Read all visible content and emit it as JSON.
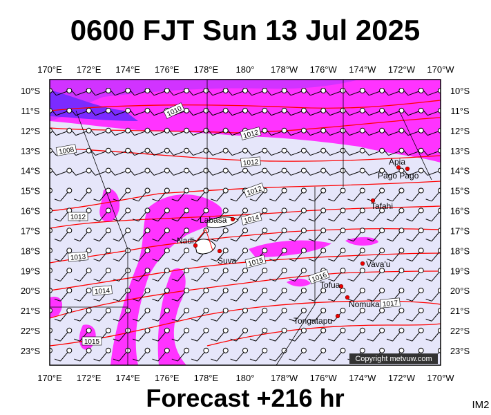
{
  "header": {
    "title": "0600 FJT Sun 13 Jul 2025"
  },
  "footer": {
    "forecast": "Forecast +216 hr",
    "badge": "IM2",
    "copyright": "Copyright metvuw.com"
  },
  "map": {
    "lon_labels": [
      "170°E",
      "172°E",
      "174°E",
      "176°E",
      "178°E",
      "180°",
      "178°W",
      "176°W",
      "174°W",
      "172°W",
      "170°W"
    ],
    "lat_labels": [
      "10°S",
      "11°S",
      "12°S",
      "13°S",
      "14°S",
      "15°S",
      "16°S",
      "17°S",
      "18°S",
      "19°S",
      "20°S",
      "21°S",
      "22°S",
      "23°S"
    ],
    "places": [
      "Apia",
      "Pago Pago",
      "Tafahi",
      "Labasa",
      "Nadi",
      "Suva",
      "Vava'u",
      "Tofua",
      "Nomuka",
      "Tongatapu"
    ],
    "isobar_labels": [
      "1010",
      "1012",
      "1012",
      "1012",
      "1014",
      "1015",
      "1016",
      "1017",
      "1008",
      "1012",
      "1013",
      "1014",
      "1015"
    ]
  }
}
